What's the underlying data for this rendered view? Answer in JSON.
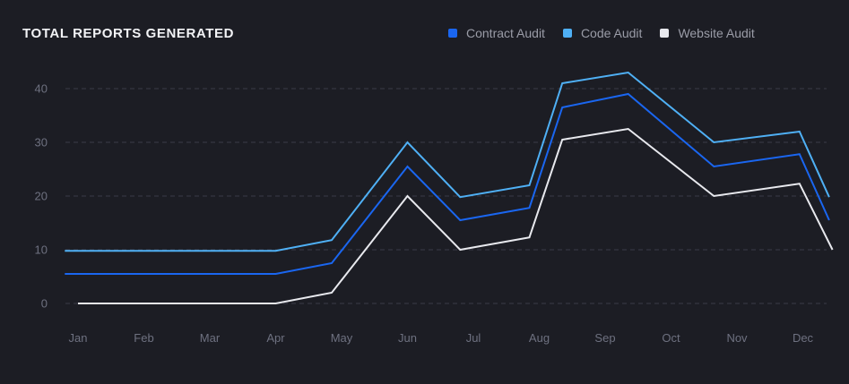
{
  "title": "TOTAL REPORTS GENERATED",
  "legend": [
    {
      "label": "Contract Audit",
      "color": "#1a66f0"
    },
    {
      "label": "Code Audit",
      "color": "#4fb0f5"
    },
    {
      "label": "Website Audit",
      "color": "#e8e9ee"
    }
  ],
  "chart_data": {
    "type": "line",
    "categories": [
      "Jan",
      "Feb",
      "Mar",
      "Apr",
      "May",
      "Jun",
      "Jul",
      "Aug",
      "Sep",
      "Oct",
      "Nov",
      "Dec"
    ],
    "yticks": [
      0,
      10,
      20,
      30,
      40
    ],
    "ylim": [
      0,
      40
    ],
    "grid": true,
    "legend_position": "top-right",
    "series": [
      {
        "name": "Code Audit",
        "color": "#4fb0f5",
        "points": [
          [
            -0.2,
            9.8
          ],
          [
            3,
            9.8
          ],
          [
            3.85,
            11.8
          ],
          [
            5,
            30
          ],
          [
            5.8,
            19.8
          ],
          [
            6.85,
            22
          ],
          [
            7.35,
            41
          ],
          [
            8.35,
            43
          ],
          [
            9.65,
            30
          ],
          [
            10.95,
            32
          ],
          [
            11.4,
            19.8
          ]
        ]
      },
      {
        "name": "Contract Audit",
        "color": "#1a66f0",
        "points": [
          [
            -0.2,
            5.5
          ],
          [
            3,
            5.5
          ],
          [
            3.85,
            7.5
          ],
          [
            5,
            25.5
          ],
          [
            5.8,
            15.5
          ],
          [
            6.85,
            17.8
          ],
          [
            7.35,
            36.5
          ],
          [
            8.35,
            39
          ],
          [
            9.65,
            25.5
          ],
          [
            10.95,
            27.8
          ],
          [
            11.4,
            15.5
          ]
        ]
      },
      {
        "name": "Website Audit",
        "color": "#e8e9ee",
        "points": [
          [
            0,
            0
          ],
          [
            3,
            0
          ],
          [
            3.85,
            2
          ],
          [
            5,
            20
          ],
          [
            5.8,
            10
          ],
          [
            6.85,
            12.3
          ],
          [
            7.35,
            30.5
          ],
          [
            8.35,
            32.5
          ],
          [
            9.65,
            20
          ],
          [
            10.95,
            22.3
          ],
          [
            11.45,
            10
          ]
        ]
      }
    ]
  }
}
